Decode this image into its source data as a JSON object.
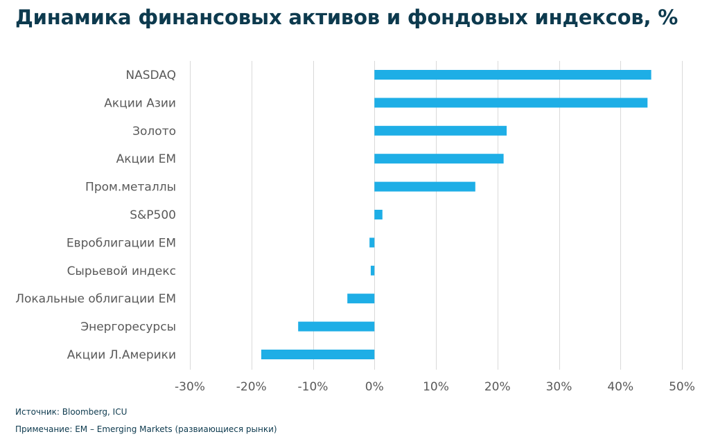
{
  "title": "Динамика финансовых активов и фондовых индексов, %",
  "source": "Источник: Bloomberg, ICU",
  "note": "Примечание: EM – Emerging Markets (развиающиеся рынки)",
  "colors": {
    "bar": "#1eaee6",
    "grid": "#d9d9d9",
    "label": "#595959",
    "title": "#0d3a4e"
  },
  "chart_data": {
    "type": "bar",
    "orientation": "horizontal",
    "categories": [
      "NASDAQ",
      "Акции Азии",
      "Золото",
      "Акции ЕМ",
      "Пром.металлы",
      "S&P500",
      "Евроблигации ЕМ",
      "Сырьевой индекс",
      "Локальные облигации ЕМ",
      "Энергоресурсы",
      "Акции Л.Америки"
    ],
    "values": [
      45.0,
      44.4,
      21.5,
      21.0,
      16.4,
      1.3,
      -0.8,
      -0.6,
      -4.4,
      -12.4,
      -18.4
    ],
    "xlim": [
      -30,
      50
    ],
    "xticks": [
      -30,
      -20,
      -10,
      0,
      10,
      20,
      30,
      40,
      50
    ],
    "xtick_labels": [
      "-30%",
      "-20%",
      "-10%",
      "0%",
      "10%",
      "20%",
      "30%",
      "40%",
      "50%"
    ],
    "grid": "vertical",
    "legend": "none"
  }
}
